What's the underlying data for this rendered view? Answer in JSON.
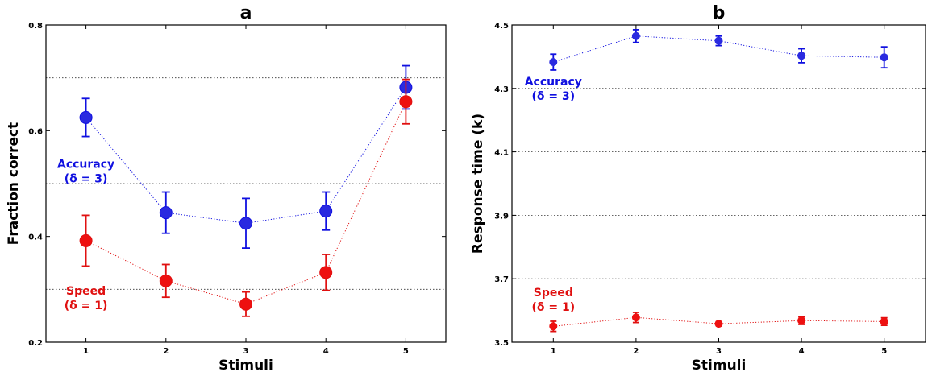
{
  "chart_data": [
    {
      "type": "line",
      "panel": "a",
      "title": "a",
      "xlabel": "Stimuli",
      "ylabel": "Fraction correct",
      "x": [
        1,
        2,
        3,
        4,
        5
      ],
      "xticks": [
        "1",
        "2",
        "3",
        "4",
        "5"
      ],
      "xlim": [
        0.5,
        5.5
      ],
      "ylim": [
        0.2,
        0.8
      ],
      "yticks": [
        "0.2",
        "0.4",
        "0.6",
        "0.8"
      ],
      "ytick_values": [
        0.2,
        0.4,
        0.6,
        0.8
      ],
      "grid_values": [
        0.3,
        0.5,
        0.7
      ],
      "grid": "horizontal dotted",
      "series": [
        {
          "label_line1": "Accuracy",
          "label_line2": "(δ = 3)",
          "label_anchor": [
            1.0,
            0.53
          ],
          "color": "#1010e0",
          "marker_color": "#2a2ae0",
          "values": [
            0.625,
            0.445,
            0.425,
            0.448,
            0.682
          ],
          "errors": [
            0.036,
            0.039,
            0.047,
            0.036,
            0.041
          ]
        },
        {
          "label_line1": "Speed",
          "label_line2": "(δ = 1)",
          "label_anchor": [
            1.0,
            0.29
          ],
          "color": "#e01010",
          "marker_color": "#ee1010",
          "values": [
            0.392,
            0.316,
            0.272,
            0.332,
            0.655
          ],
          "errors": [
            0.048,
            0.031,
            0.023,
            0.034,
            0.042
          ]
        }
      ]
    },
    {
      "type": "line",
      "panel": "b",
      "title": "b",
      "xlabel": "Stimuli",
      "ylabel": "Response time (k)",
      "x": [
        1,
        2,
        3,
        4,
        5
      ],
      "xticks": [
        "1",
        "2",
        "3",
        "4",
        "5"
      ],
      "xlim": [
        0.5,
        5.5
      ],
      "ylim": [
        3.5,
        4.5
      ],
      "yticks": [
        "3.5",
        "3.7",
        "3.9",
        "4.1",
        "4.3",
        "4.5"
      ],
      "ytick_values": [
        3.5,
        3.7,
        3.9,
        4.1,
        4.3,
        4.5
      ],
      "grid_values": [
        3.7,
        3.9,
        4.1,
        4.3
      ],
      "grid": "horizontal dotted",
      "series": [
        {
          "label_line1": "Accuracy",
          "label_line2": "(δ = 3)",
          "label_anchor": [
            1.0,
            4.31
          ],
          "color": "#1010e0",
          "marker_color": "#2a2ae0",
          "values": [
            4.383,
            4.465,
            4.45,
            4.403,
            4.398
          ],
          "errors": [
            0.025,
            0.02,
            0.015,
            0.022,
            0.033
          ]
        },
        {
          "label_line1": "Speed",
          "label_line2": "(δ = 1)",
          "label_anchor": [
            1.0,
            3.645
          ],
          "color": "#e01010",
          "marker_color": "#ee1010",
          "values": [
            3.55,
            3.578,
            3.558,
            3.568,
            3.565
          ],
          "errors": [
            0.016,
            0.016,
            0.006,
            0.012,
            0.012
          ]
        }
      ]
    }
  ]
}
